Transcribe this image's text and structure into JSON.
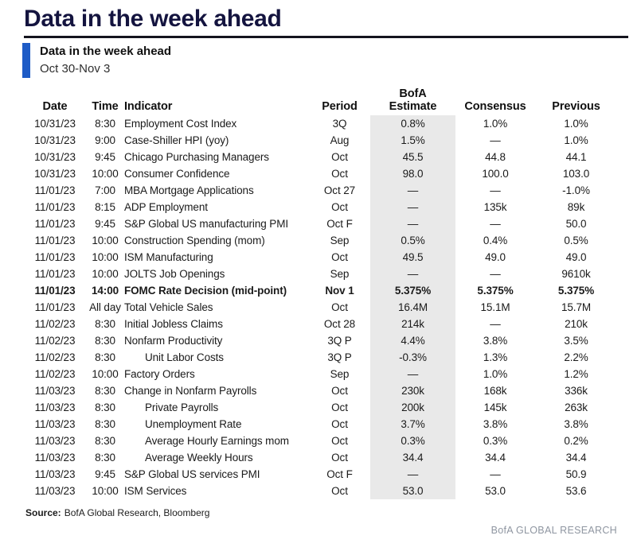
{
  "page_title": "Data in the week ahead",
  "section": {
    "title": "Data in the week ahead",
    "date_range": "Oct 30-Nov 3"
  },
  "table": {
    "columns": {
      "date": "Date",
      "time": "Time",
      "indicator": "Indicator",
      "period": "Period",
      "estimate_line1": "BofA",
      "estimate_line2": "Estimate",
      "consensus": "Consensus",
      "previous": "Previous"
    },
    "rows": [
      {
        "date": "10/31/23",
        "time": "8:30",
        "indicator": "Employment Cost Index",
        "period": "3Q",
        "estimate": "0.8%",
        "consensus": "1.0%",
        "previous": "1.0%",
        "bold": false,
        "indent": false
      },
      {
        "date": "10/31/23",
        "time": "9:00",
        "indicator": "Case-Shiller HPI (yoy)",
        "period": "Aug",
        "estimate": "1.5%",
        "consensus": "—",
        "previous": "1.0%",
        "bold": false,
        "indent": false
      },
      {
        "date": "10/31/23",
        "time": "9:45",
        "indicator": "Chicago Purchasing Managers",
        "period": "Oct",
        "estimate": "45.5",
        "consensus": "44.8",
        "previous": "44.1",
        "bold": false,
        "indent": false
      },
      {
        "date": "10/31/23",
        "time": "10:00",
        "indicator": "Consumer Confidence",
        "period": "Oct",
        "estimate": "98.0",
        "consensus": "100.0",
        "previous": "103.0",
        "bold": false,
        "indent": false
      },
      {
        "date": "11/01/23",
        "time": "7:00",
        "indicator": "MBA Mortgage Applications",
        "period": "Oct 27",
        "estimate": "—",
        "consensus": "—",
        "previous": "-1.0%",
        "bold": false,
        "indent": false
      },
      {
        "date": "11/01/23",
        "time": "8:15",
        "indicator": "ADP Employment",
        "period": "Oct",
        "estimate": "—",
        "consensus": "135k",
        "previous": "89k",
        "bold": false,
        "indent": false
      },
      {
        "date": "11/01/23",
        "time": "9:45",
        "indicator": "S&P Global US manufacturing PMI",
        "period": "Oct F",
        "estimate": "—",
        "consensus": "—",
        "previous": "50.0",
        "bold": false,
        "indent": false
      },
      {
        "date": "11/01/23",
        "time": "10:00",
        "indicator": "Construction Spending (mom)",
        "period": "Sep",
        "estimate": "0.5%",
        "consensus": "0.4%",
        "previous": "0.5%",
        "bold": false,
        "indent": false
      },
      {
        "date": "11/01/23",
        "time": "10:00",
        "indicator": "ISM Manufacturing",
        "period": "Oct",
        "estimate": "49.5",
        "consensus": "49.0",
        "previous": "49.0",
        "bold": false,
        "indent": false
      },
      {
        "date": "11/01/23",
        "time": "10:00",
        "indicator": "JOLTS Job Openings",
        "period": "Sep",
        "estimate": "—",
        "consensus": "—",
        "previous": "9610k",
        "bold": false,
        "indent": false
      },
      {
        "date": "11/01/23",
        "time": "14:00",
        "indicator": "FOMC Rate Decision (mid-point)",
        "period": "Nov 1",
        "estimate": "5.375%",
        "consensus": "5.375%",
        "previous": "5.375%",
        "bold": true,
        "indent": false
      },
      {
        "date": "11/01/23",
        "time": "All day",
        "indicator": "Total Vehicle Sales",
        "period": "Oct",
        "estimate": "16.4M",
        "consensus": "15.1M",
        "previous": "15.7M",
        "bold": false,
        "indent": false
      },
      {
        "date": "11/02/23",
        "time": "8:30",
        "indicator": "Initial Jobless Claims",
        "period": "Oct 28",
        "estimate": "214k",
        "consensus": "—",
        "previous": "210k",
        "bold": false,
        "indent": false
      },
      {
        "date": "11/02/23",
        "time": "8:30",
        "indicator": "Nonfarm Productivity",
        "period": "3Q P",
        "estimate": "4.4%",
        "consensus": "3.8%",
        "previous": "3.5%",
        "bold": false,
        "indent": false
      },
      {
        "date": "11/02/23",
        "time": "8:30",
        "indicator": "Unit Labor Costs",
        "period": "3Q P",
        "estimate": "-0.3%",
        "consensus": "1.3%",
        "previous": "2.2%",
        "bold": false,
        "indent": true
      },
      {
        "date": "11/02/23",
        "time": "10:00",
        "indicator": "Factory Orders",
        "period": "Sep",
        "estimate": "—",
        "consensus": "1.0%",
        "previous": "1.2%",
        "bold": false,
        "indent": false
      },
      {
        "date": "11/03/23",
        "time": "8:30",
        "indicator": "Change in Nonfarm Payrolls",
        "period": "Oct",
        "estimate": "230k",
        "consensus": "168k",
        "previous": "336k",
        "bold": false,
        "indent": false
      },
      {
        "date": "11/03/23",
        "time": "8:30",
        "indicator": "Private Payrolls",
        "period": "Oct",
        "estimate": "200k",
        "consensus": "145k",
        "previous": "263k",
        "bold": false,
        "indent": true
      },
      {
        "date": "11/03/23",
        "time": "8:30",
        "indicator": "Unemployment Rate",
        "period": "Oct",
        "estimate": "3.7%",
        "consensus": "3.8%",
        "previous": "3.8%",
        "bold": false,
        "indent": true
      },
      {
        "date": "11/03/23",
        "time": "8:30",
        "indicator": "Average Hourly Earnings mom",
        "period": "Oct",
        "estimate": "0.3%",
        "consensus": "0.3%",
        "previous": "0.2%",
        "bold": false,
        "indent": true
      },
      {
        "date": "11/03/23",
        "time": "8:30",
        "indicator": "Average Weekly Hours",
        "period": "Oct",
        "estimate": "34.4",
        "consensus": "34.4",
        "previous": "34.4",
        "bold": false,
        "indent": true
      },
      {
        "date": "11/03/23",
        "time": "9:45",
        "indicator": "S&P Global US services PMI",
        "period": "Oct F",
        "estimate": "—",
        "consensus": "—",
        "previous": "50.9",
        "bold": false,
        "indent": false
      },
      {
        "date": "11/03/23",
        "time": "10:00",
        "indicator": "ISM Services",
        "period": "Oct",
        "estimate": "53.0",
        "consensus": "53.0",
        "previous": "53.6",
        "bold": false,
        "indent": false
      }
    ]
  },
  "source": {
    "label": "Source:",
    "text": "BofA Global Research, Bloomberg"
  },
  "footer": {
    "brand": "BofA GLOBAL RESEARCH"
  },
  "colors": {
    "title_navy": "#14143f",
    "accent_blue": "#1e5bc6",
    "estimate_band_gray": "#e9e9e9",
    "footer_gray": "#8f96a1"
  }
}
